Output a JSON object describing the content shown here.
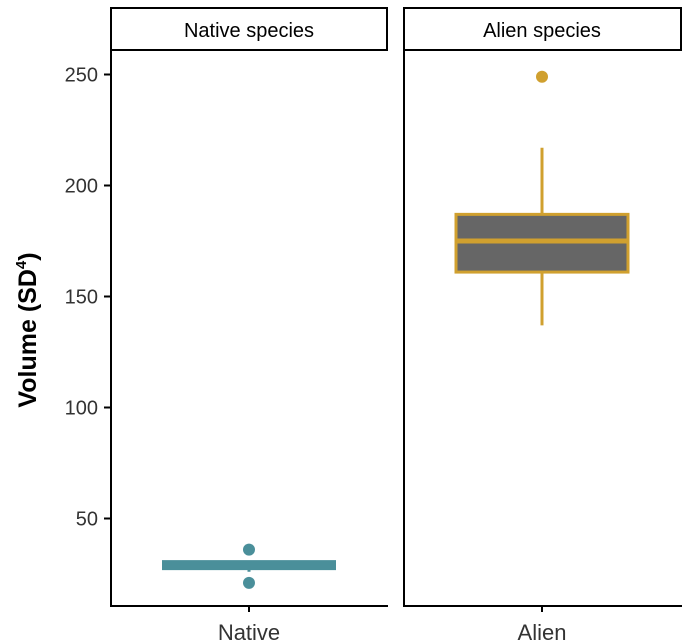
{
  "chart_data": {
    "type": "boxplot",
    "ylabel": "Volume (SD",
    "ylabel_superscript": "4",
    "ylabel_close": ")",
    "yticks": [
      50,
      100,
      150,
      200,
      250
    ],
    "ylim": [
      10,
      260
    ],
    "panels": [
      {
        "strip": "Native species",
        "category": "Native",
        "color": "#4a8f9a",
        "fill": "#4a8f9a",
        "whisker_low": 26,
        "q1": 28,
        "median": 29,
        "q3": 30,
        "whisker_high": 31,
        "outliers": [
          21,
          36
        ]
      },
      {
        "strip": "Alien species",
        "category": "Alien",
        "color": "#d0a02f",
        "fill": "#666666",
        "whisker_low": 137,
        "q1": 161,
        "median": 175,
        "q3": 187,
        "whisker_high": 217,
        "outliers": [
          249
        ]
      }
    ]
  }
}
